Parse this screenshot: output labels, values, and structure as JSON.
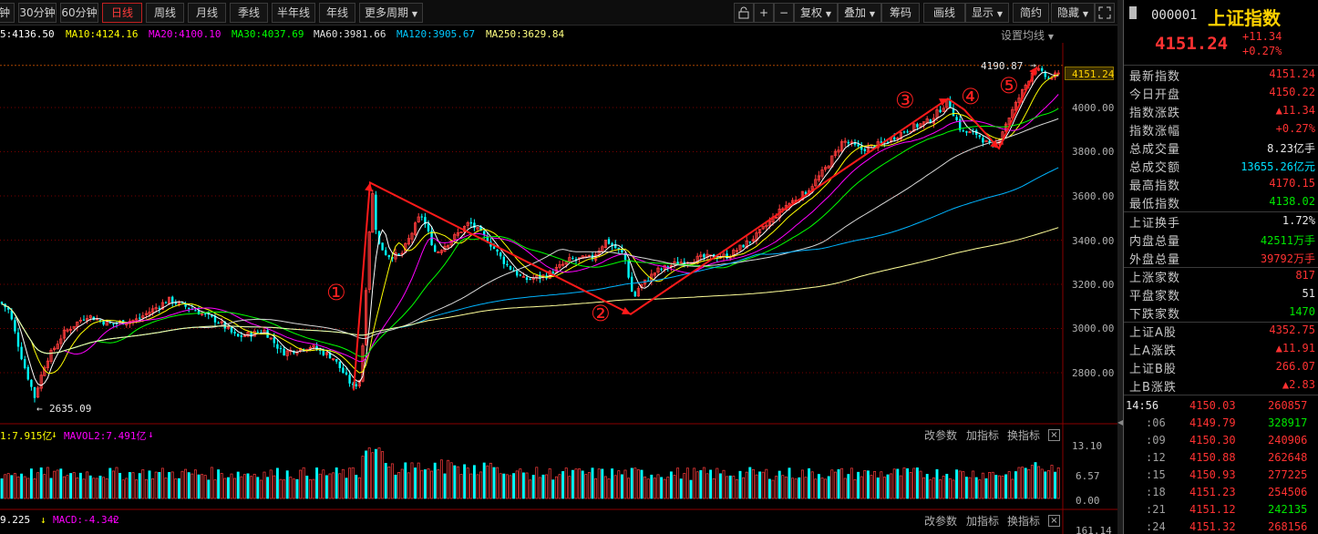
{
  "toolbar": {
    "periods": [
      "钟",
      "30分钟",
      "60分钟",
      "日线",
      "周线",
      "月线",
      "季线",
      "半年线",
      "年线",
      "更多周期"
    ],
    "active_period": "日线",
    "right_buttons": [
      "复权",
      "叠加",
      "筹码",
      "画线",
      "显示",
      "简约",
      "隐藏"
    ]
  },
  "ma": {
    "items": [
      {
        "label": "5:4136.50",
        "color": "#ffffff"
      },
      {
        "label": "MA10:4124.16",
        "color": "#ffff00"
      },
      {
        "label": "MA20:4100.10",
        "color": "#ff00ff"
      },
      {
        "label": "MA30:4037.69",
        "color": "#00ff00"
      },
      {
        "label": "MA60:3981.66",
        "color": "#e0e0e0"
      },
      {
        "label": "MA120:3905.67",
        "color": "#00c8ff"
      },
      {
        "label": "MA250:3629.84",
        "color": "#ffff80"
      }
    ],
    "settings_label": "设置均线"
  },
  "main_chart": {
    "high_label": "4190.87",
    "low_label": "2635.09",
    "last_price_tag": "4151.24",
    "y_ticks": [
      "4000.00",
      "3800.00",
      "3600.00",
      "3400.00",
      "3200.00",
      "3000.00",
      "2800.00"
    ],
    "wave_labels": [
      "①",
      "②",
      "③",
      "④",
      "⑤"
    ]
  },
  "volume_pane": {
    "header": [
      {
        "label": "1:7.915亿",
        "color": "#ffff00"
      },
      {
        "label": "MAVOL2:7.491亿",
        "color": "#ff00ff"
      }
    ],
    "y_ticks": [
      "13.10",
      "6.57",
      "0.00"
    ],
    "buttons": [
      "改参数",
      "加指标",
      "换指标"
    ]
  },
  "macd_pane": {
    "header": [
      {
        "label": "9.225",
        "color": "#ffffff"
      },
      {
        "label": "MACD:-4.342",
        "color": "#ff00ff"
      }
    ],
    "y_tick": "161.14",
    "buttons": [
      "改参数",
      "加指标",
      "换指标"
    ]
  },
  "quote": {
    "code": "000001",
    "name": "上证指数",
    "price": "4151.24",
    "change": "+11.34",
    "change_pct": "+0.27%",
    "stats": [
      {
        "k": "最新指数",
        "v": "4151.24",
        "c": "red"
      },
      {
        "k": "今日开盘",
        "v": "4150.22",
        "c": "red"
      },
      {
        "k": "指数涨跌",
        "v": "▲11.34",
        "c": "red"
      },
      {
        "k": "指数涨幅",
        "v": "+0.27%",
        "c": "red"
      },
      {
        "k": "总成交量",
        "v": "8.23亿手",
        "c": "white"
      },
      {
        "k": "总成交额",
        "v": "13655.26亿元",
        "c": "cyan"
      },
      {
        "k": "最高指数",
        "v": "4170.15",
        "c": "red"
      },
      {
        "k": "最低指数",
        "v": "4138.02",
        "c": "green"
      }
    ],
    "stats2": [
      {
        "k": "上证换手",
        "v": "1.72%",
        "c": "white"
      },
      {
        "k": "内盘总量",
        "v": "42511万手",
        "c": "green"
      },
      {
        "k": "外盘总量",
        "v": "39792万手",
        "c": "red"
      }
    ],
    "stats3": [
      {
        "k": "上涨家数",
        "v": "817",
        "c": "red"
      },
      {
        "k": "平盘家数",
        "v": "51",
        "c": "white"
      },
      {
        "k": "下跌家数",
        "v": "1470",
        "c": "green"
      }
    ],
    "stats4": [
      {
        "k": "上证A股",
        "v": "4352.75",
        "c": "red"
      },
      {
        "k": "上A涨跌",
        "v": "▲11.91",
        "c": "red"
      },
      {
        "k": "上证B股",
        "v": "266.07",
        "c": "red"
      },
      {
        "k": "上B涨跌",
        "v": "▲2.83",
        "c": "red"
      }
    ],
    "ticks": [
      {
        "t": "14:56",
        "p": "4150.03",
        "vol": "260857",
        "vc": "red"
      },
      {
        "t": ":06",
        "p": "4149.79",
        "vol": "328917",
        "vc": "green"
      },
      {
        "t": ":09",
        "p": "4150.30",
        "vol": "240906",
        "vc": "red"
      },
      {
        "t": ":12",
        "p": "4150.88",
        "vol": "262648",
        "vc": "red"
      },
      {
        "t": ":15",
        "p": "4150.93",
        "vol": "277225",
        "vc": "red"
      },
      {
        "t": ":18",
        "p": "4151.23",
        "vol": "254506",
        "vc": "red"
      },
      {
        "t": ":21",
        "p": "4151.12",
        "vol": "242135",
        "vc": "green"
      },
      {
        "t": ":24",
        "p": "4151.32",
        "vol": "268156",
        "vc": "red"
      }
    ]
  }
}
